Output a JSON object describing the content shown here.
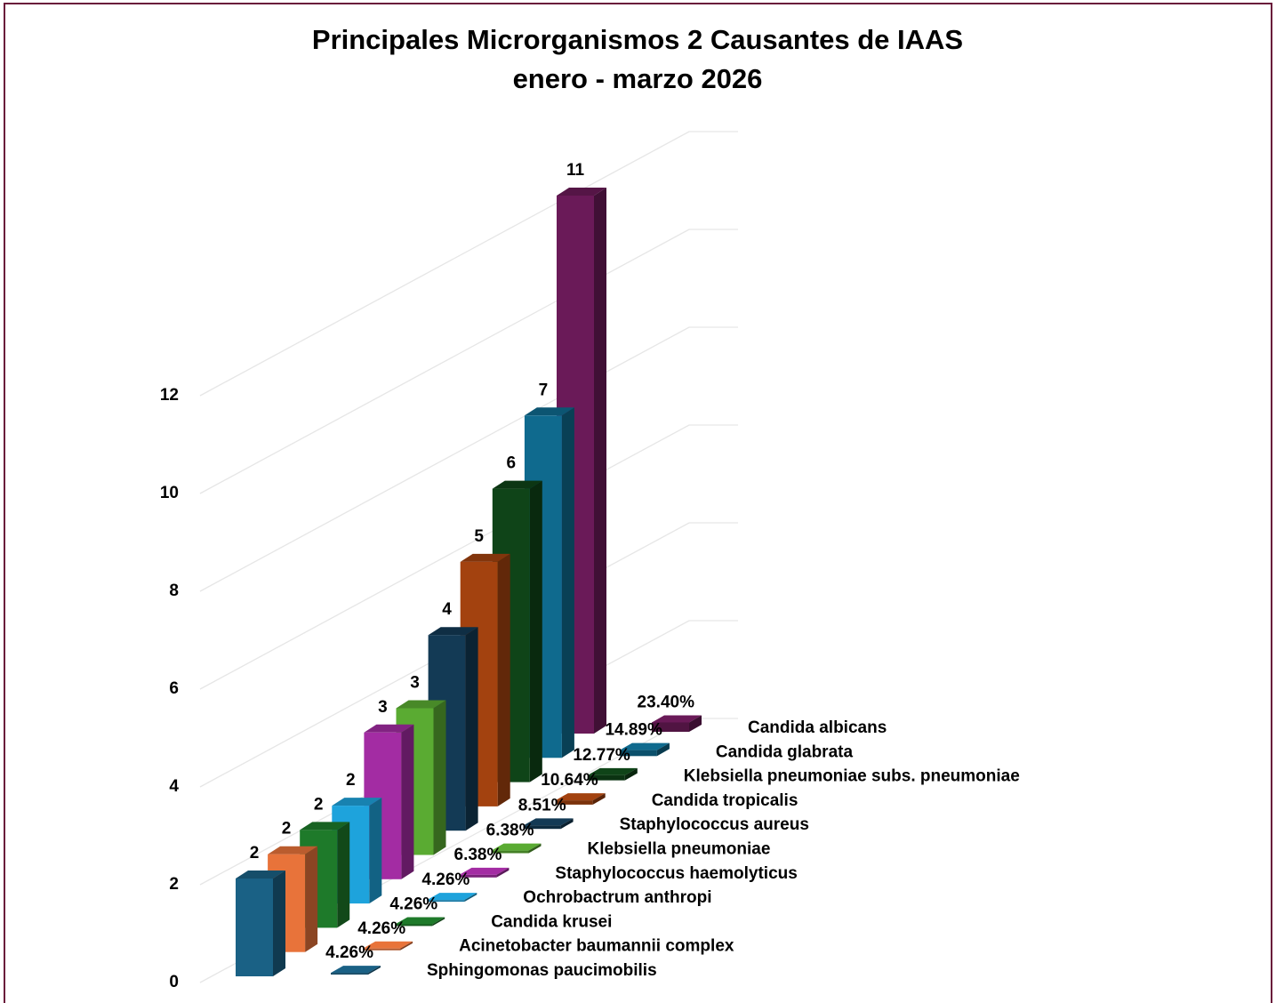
{
  "chart_data": {
    "type": "bar3d",
    "title": "Principales Microrganismos 2 Causantes de IAAS",
    "subtitle": "enero - marzo 2026",
    "categories": [
      "Sphingomonas paucimobilis",
      "Acinetobacter baumannii complex",
      "Candida krusei",
      "Ochrobactrum anthropi",
      "Staphylococcus haemolyticus",
      "Klebsiella pneumoniae",
      "Staphylococcus aureus",
      "Candida tropicalis",
      "Klebsiella pneumoniae subs. pneumoniae",
      "Candida glabrata",
      "Candida albicans"
    ],
    "colors": [
      "#1a6185",
      "#e8733a",
      "#1e7a2a",
      "#1ea3dc",
      "#a32ca3",
      "#5aab32",
      "#133a55",
      "#a3420f",
      "#0f4418",
      "#0f6a8e",
      "#6a1a58"
    ],
    "series": [
      {
        "values": [
          2,
          2,
          2,
          2,
          3,
          3,
          4,
          5,
          6,
          7,
          11
        ]
      },
      {
        "values": [
          4.26,
          4.26,
          4.26,
          4.26,
          6.38,
          6.38,
          8.51,
          10.64,
          12.77,
          14.89,
          23.4
        ],
        "value_labels": [
          "4.26%",
          "4.26%",
          "4.26%",
          "4.26%",
          "6.38%",
          "6.38%",
          "8.51%",
          "10.64%",
          "12.77%",
          "14.89%",
          "23.40%"
        ]
      }
    ],
    "ylim": [
      0,
      12
    ],
    "yticks": [
      0,
      2,
      4,
      6,
      8,
      10,
      12
    ],
    "grid": true
  }
}
